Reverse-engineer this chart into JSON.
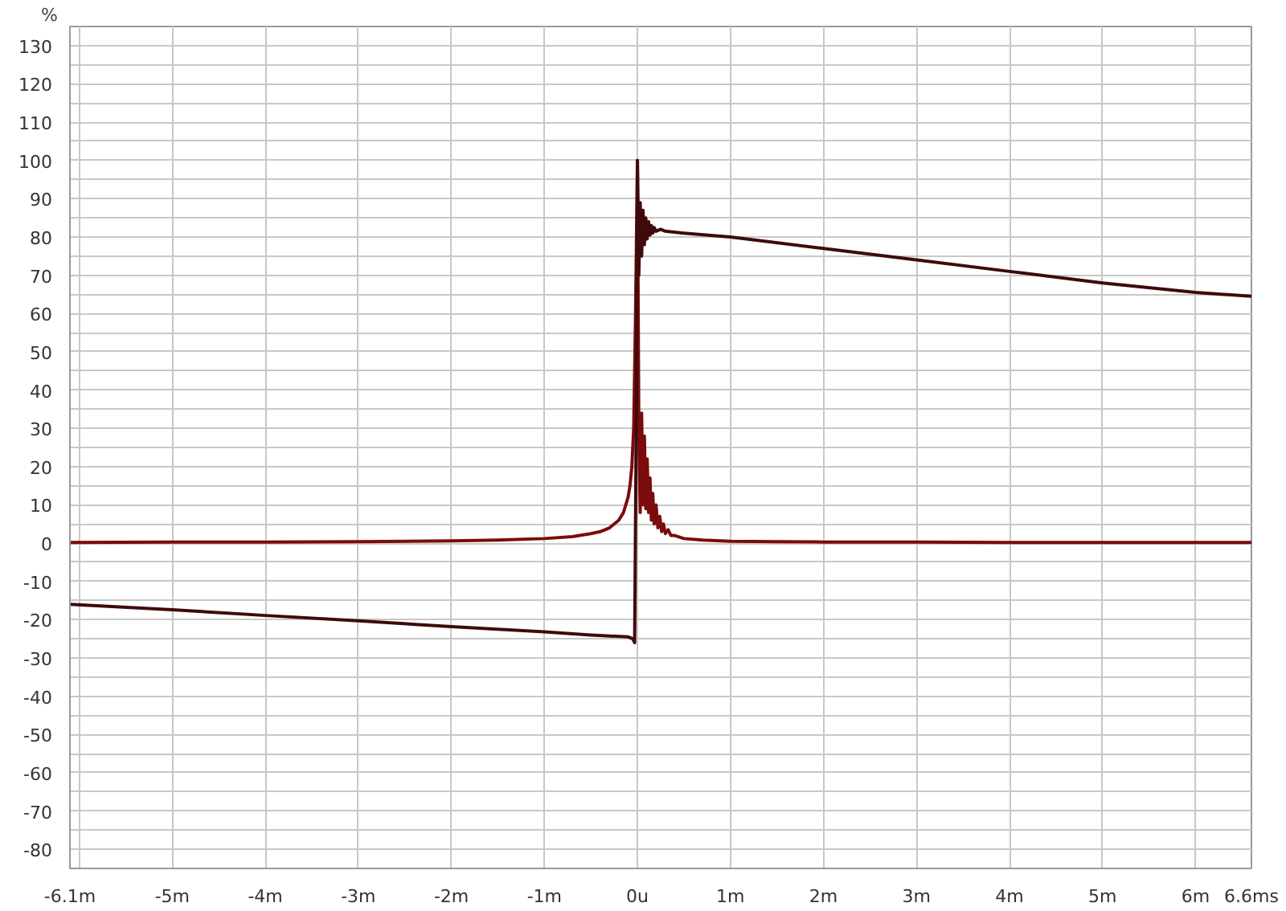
{
  "chart_data": {
    "type": "line",
    "ylabel": "%",
    "xlim": [
      -6.1,
      6.6
    ],
    "ylim": [
      -85,
      135
    ],
    "xticks": [
      {
        "value": -6.1,
        "label": "-6.1m"
      },
      {
        "value": -6,
        "label": null
      },
      {
        "value": -5,
        "label": "-5m"
      },
      {
        "value": -4,
        "label": "-4m"
      },
      {
        "value": -3,
        "label": "-3m"
      },
      {
        "value": -2,
        "label": "-2m"
      },
      {
        "value": -1,
        "label": "-1m"
      },
      {
        "value": 0,
        "label": "0u"
      },
      {
        "value": 1,
        "label": "1m"
      },
      {
        "value": 2,
        "label": "2m"
      },
      {
        "value": 3,
        "label": "3m"
      },
      {
        "value": 4,
        "label": "4m"
      },
      {
        "value": 5,
        "label": "5m"
      },
      {
        "value": 6,
        "label": "6m"
      },
      {
        "value": 6.6,
        "label": "6.6ms"
      }
    ],
    "yticks": [
      -80,
      {
        "value": -75,
        "label": null
      },
      -70,
      {
        "value": -65,
        "label": null
      },
      -60,
      {
        "value": -55,
        "label": null
      },
      -50,
      {
        "value": -45,
        "label": null
      },
      -40,
      {
        "value": -35,
        "label": null
      },
      -30,
      {
        "value": -25,
        "label": null
      },
      -20,
      {
        "value": -15,
        "label": null
      },
      -10,
      {
        "value": -5,
        "label": null
      },
      0,
      {
        "value": 5,
        "label": null
      },
      10,
      {
        "value": 15,
        "label": null
      },
      20,
      {
        "value": 25,
        "label": null
      },
      30,
      {
        "value": 35,
        "label": null
      },
      40,
      {
        "value": 45,
        "label": null
      },
      50,
      {
        "value": 55,
        "label": null
      },
      60,
      {
        "value": 65,
        "label": null
      },
      70,
      {
        "value": 75,
        "label": null
      },
      80,
      {
        "value": 85,
        "label": null
      },
      90,
      {
        "value": 95,
        "label": null
      },
      100,
      {
        "value": 105,
        "label": null
      },
      110,
      {
        "value": 115,
        "label": null
      },
      120,
      {
        "value": 125,
        "label": null
      },
      130
    ],
    "grid": true,
    "line_style": "solid",
    "marker": "none",
    "series": [
      {
        "color": "#7a0c0c",
        "x": [
          -6.1,
          -5,
          -4,
          -3,
          -2,
          -1.5,
          -1,
          -0.7,
          -0.5,
          -0.4,
          -0.3,
          -0.2,
          -0.15,
          -0.1,
          -0.08,
          -0.06,
          -0.04,
          -0.02,
          0,
          0.015,
          0.03,
          0.045,
          0.06,
          0.075,
          0.09,
          0.105,
          0.12,
          0.135,
          0.15,
          0.165,
          0.18,
          0.2,
          0.22,
          0.24,
          0.26,
          0.28,
          0.3,
          0.33,
          0.36,
          0.4,
          0.5,
          0.7,
          1,
          1.5,
          2,
          3,
          4,
          5,
          6,
          6.6
        ],
        "values": [
          0.2,
          0.3,
          0.3,
          0.4,
          0.6,
          0.8,
          1.2,
          1.7,
          2.5,
          3,
          4,
          6,
          8,
          12,
          15,
          20,
          30,
          60,
          100,
          30,
          8,
          34,
          10,
          28,
          9,
          22,
          8,
          17,
          6,
          13,
          5,
          10,
          4,
          7,
          3,
          5,
          2.5,
          3.5,
          2,
          2,
          1.2,
          0.8,
          0.5,
          0.4,
          0.3,
          0.3,
          0.2,
          0.2,
          0.2,
          0.2
        ]
      },
      {
        "color": "#400a0a",
        "x": [
          -6.1,
          -5,
          -4,
          -3,
          -2,
          -1,
          -0.5,
          -0.1,
          -0.05,
          -0.03,
          -0.01,
          0.0,
          0.015,
          0.03,
          0.045,
          0.06,
          0.075,
          0.09,
          0.105,
          0.12,
          0.135,
          0.15,
          0.165,
          0.18,
          0.2,
          0.25,
          0.3,
          0.5,
          1,
          2,
          3,
          4,
          5,
          6,
          6.6
        ],
        "values": [
          -16,
          -17.4,
          -18.9,
          -20.3,
          -21.8,
          -23.2,
          -24,
          -24.5,
          -25,
          -26,
          40,
          100,
          70,
          89,
          75,
          87,
          78,
          85,
          79.5,
          84,
          80.5,
          83,
          81,
          82.5,
          81.5,
          82,
          81.5,
          81,
          80,
          77,
          74,
          71,
          68,
          65.5,
          64.5
        ]
      }
    ]
  }
}
